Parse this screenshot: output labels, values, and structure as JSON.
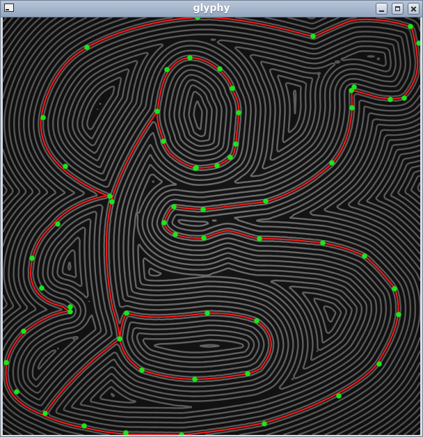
{
  "window": {
    "title": "glyphy",
    "icons": {
      "app": "window-icon",
      "minimize": "minimize-icon",
      "maximize": "maximize-icon",
      "close": "close-icon"
    }
  },
  "colors": {
    "outline": "#ff1a1a",
    "control_point": "#19e619",
    "background_dark": "#141414",
    "field_light": "#bdbdbd"
  }
}
